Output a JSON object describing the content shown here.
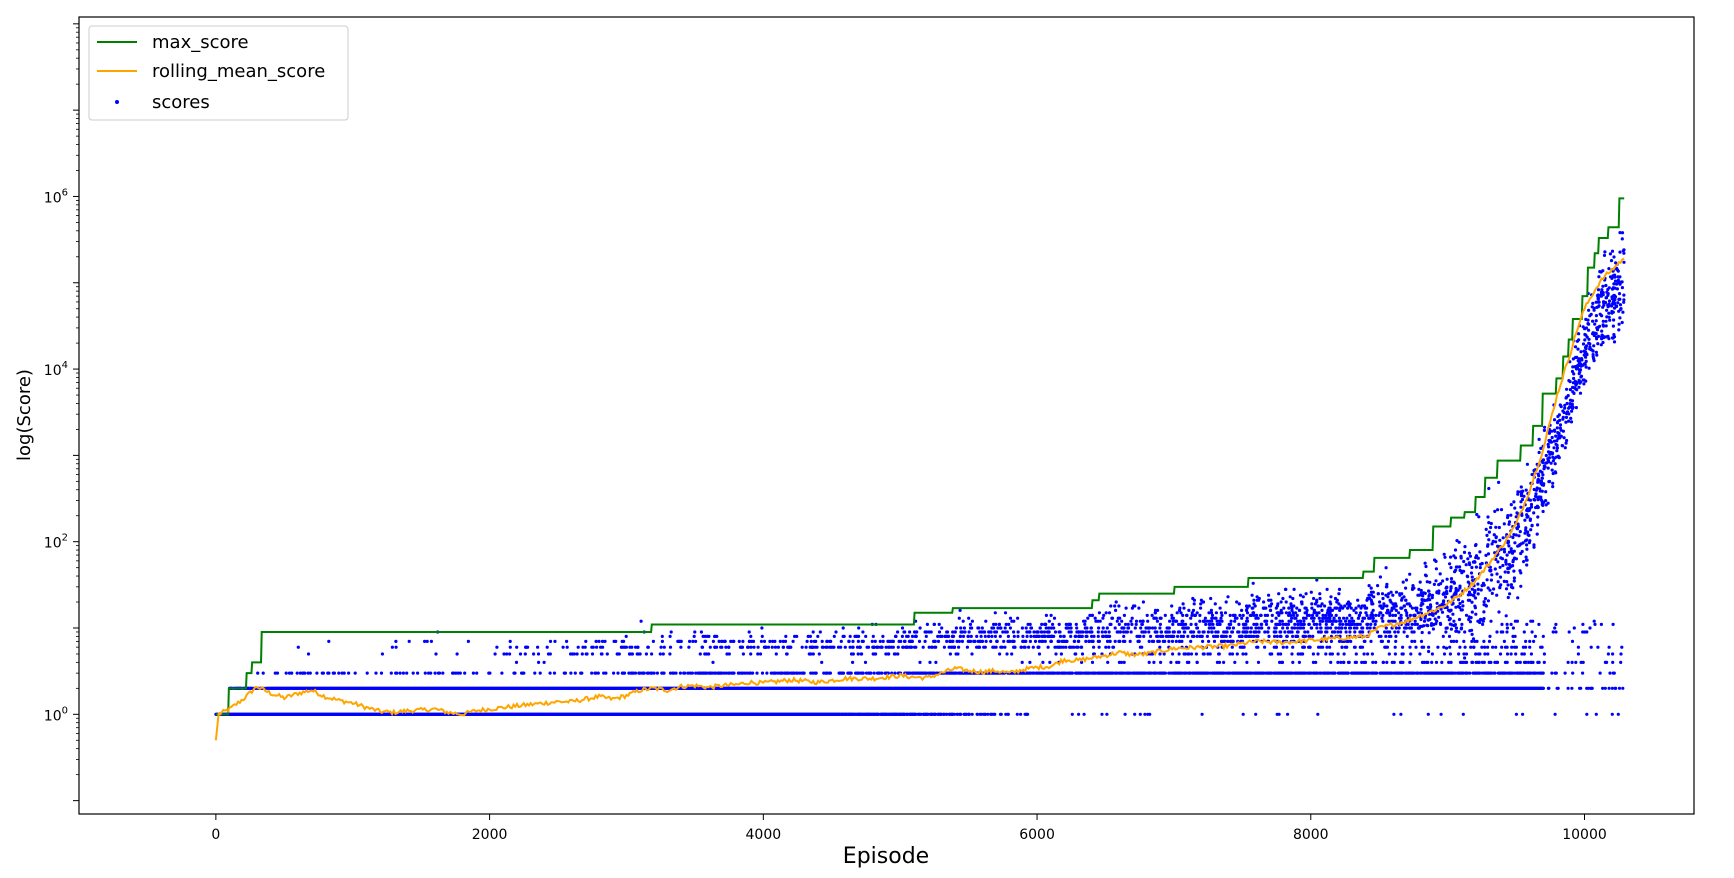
{
  "chart_data": {
    "type": "line+scatter",
    "title": "",
    "xlabel": "Episode",
    "ylabel": "log(Score)",
    "xlim": [
      -1000,
      10800
    ],
    "ylim": [
      0.07,
      120000000
    ],
    "yscale": "log",
    "xticks": [
      0,
      2000,
      4000,
      6000,
      8000,
      10000
    ],
    "yticks": [
      {
        "value": 1,
        "label": "10",
        "exp": "0"
      },
      {
        "value": 100,
        "label": "10",
        "exp": "2"
      },
      {
        "value": 10000,
        "label": "10",
        "exp": "4"
      },
      {
        "value": 1000000,
        "label": "10",
        "exp": "6"
      }
    ],
    "grid": false,
    "legend_position": "top-left",
    "series": [
      {
        "name": "max_score",
        "kind": "step",
        "color": "#008000",
        "points": [
          [
            0,
            1
          ],
          [
            90,
            1
          ],
          [
            95,
            2
          ],
          [
            220,
            2
          ],
          [
            225,
            3
          ],
          [
            260,
            3
          ],
          [
            265,
            4
          ],
          [
            330,
            4
          ],
          [
            335,
            9
          ],
          [
            3180,
            9
          ],
          [
            3185,
            11
          ],
          [
            5100,
            11
          ],
          [
            5105,
            15
          ],
          [
            5380,
            15
          ],
          [
            5385,
            17
          ],
          [
            6400,
            17
          ],
          [
            6405,
            21
          ],
          [
            6450,
            21
          ],
          [
            6455,
            25
          ],
          [
            7000,
            25
          ],
          [
            7005,
            30
          ],
          [
            7540,
            30
          ],
          [
            7545,
            38
          ],
          [
            8380,
            38
          ],
          [
            8385,
            45
          ],
          [
            8460,
            45
          ],
          [
            8465,
            65
          ],
          [
            8720,
            65
          ],
          [
            8725,
            80
          ],
          [
            8890,
            80
          ],
          [
            8895,
            150
          ],
          [
            9020,
            150
          ],
          [
            9025,
            190
          ],
          [
            9120,
            190
          ],
          [
            9125,
            220
          ],
          [
            9200,
            220
          ],
          [
            9205,
            330
          ],
          [
            9270,
            330
          ],
          [
            9275,
            550
          ],
          [
            9360,
            550
          ],
          [
            9365,
            870
          ],
          [
            9530,
            870
          ],
          [
            9535,
            1300
          ],
          [
            9620,
            1300
          ],
          [
            9625,
            2200
          ],
          [
            9690,
            2200
          ],
          [
            9695,
            5200
          ],
          [
            9790,
            5200
          ],
          [
            9795,
            7800
          ],
          [
            9840,
            7800
          ],
          [
            9845,
            14000
          ],
          [
            9880,
            14000
          ],
          [
            9885,
            22000
          ],
          [
            9910,
            22000
          ],
          [
            9915,
            38000
          ],
          [
            9980,
            38000
          ],
          [
            9985,
            70000
          ],
          [
            10020,
            70000
          ],
          [
            10025,
            150000
          ],
          [
            10070,
            150000
          ],
          [
            10075,
            220000
          ],
          [
            10100,
            220000
          ],
          [
            10105,
            330000
          ],
          [
            10170,
            330000
          ],
          [
            10175,
            440000
          ],
          [
            10250,
            440000
          ],
          [
            10255,
            950000
          ],
          [
            10290,
            950000
          ]
        ]
      },
      {
        "name": "rolling_mean_score",
        "kind": "line",
        "color": "#ffa500",
        "points": [
          [
            0,
            0.5
          ],
          [
            20,
            1.0
          ],
          [
            100,
            1.15
          ],
          [
            200,
            1.5
          ],
          [
            300,
            2.1
          ],
          [
            400,
            1.75
          ],
          [
            500,
            1.55
          ],
          [
            600,
            1.75
          ],
          [
            700,
            1.9
          ],
          [
            800,
            1.6
          ],
          [
            900,
            1.45
          ],
          [
            1000,
            1.35
          ],
          [
            1100,
            1.2
          ],
          [
            1200,
            1.08
          ],
          [
            1300,
            1.05
          ],
          [
            1400,
            1.1
          ],
          [
            1500,
            1.12
          ],
          [
            1600,
            1.15
          ],
          [
            1700,
            1.05
          ],
          [
            1800,
            1.0
          ],
          [
            1900,
            1.1
          ],
          [
            2000,
            1.15
          ],
          [
            2100,
            1.2
          ],
          [
            2200,
            1.25
          ],
          [
            2300,
            1.3
          ],
          [
            2400,
            1.35
          ],
          [
            2500,
            1.4
          ],
          [
            2600,
            1.4
          ],
          [
            2700,
            1.5
          ],
          [
            2800,
            1.6
          ],
          [
            2900,
            1.5
          ],
          [
            3000,
            1.65
          ],
          [
            3100,
            1.9
          ],
          [
            3200,
            2.0
          ],
          [
            3300,
            1.9
          ],
          [
            3400,
            2.1
          ],
          [
            3500,
            2.15
          ],
          [
            3600,
            2.05
          ],
          [
            3700,
            2.15
          ],
          [
            3800,
            2.2
          ],
          [
            3900,
            2.35
          ],
          [
            4000,
            2.3
          ],
          [
            4200,
            2.5
          ],
          [
            4400,
            2.35
          ],
          [
            4600,
            2.6
          ],
          [
            4800,
            2.6
          ],
          [
            5000,
            2.8
          ],
          [
            5100,
            2.7
          ],
          [
            5200,
            2.65
          ],
          [
            5300,
            3.0
          ],
          [
            5400,
            3.4
          ],
          [
            5500,
            3.2
          ],
          [
            5600,
            3.1
          ],
          [
            5700,
            3.2
          ],
          [
            5800,
            3.0
          ],
          [
            5900,
            3.3
          ],
          [
            6000,
            3.5
          ],
          [
            6100,
            3.6
          ],
          [
            6200,
            4.3
          ],
          [
            6300,
            4.2
          ],
          [
            6400,
            4.5
          ],
          [
            6500,
            4.8
          ],
          [
            6600,
            5.2
          ],
          [
            6700,
            4.9
          ],
          [
            6800,
            5.0
          ],
          [
            6900,
            5.4
          ],
          [
            7000,
            5.8
          ],
          [
            7200,
            6.0
          ],
          [
            7400,
            6.2
          ],
          [
            7600,
            7.0
          ],
          [
            7800,
            6.8
          ],
          [
            8000,
            7.2
          ],
          [
            8200,
            7.6
          ],
          [
            8400,
            8.0
          ],
          [
            8500,
            10
          ],
          [
            8600,
            11
          ],
          [
            8700,
            12
          ],
          [
            8800,
            14
          ],
          [
            8900,
            16
          ],
          [
            9000,
            19
          ],
          [
            9100,
            25
          ],
          [
            9200,
            35
          ],
          [
            9300,
            55
          ],
          [
            9400,
            90
          ],
          [
            9500,
            160
          ],
          [
            9550,
            250
          ],
          [
            9600,
            400
          ],
          [
            9650,
            700
          ],
          [
            9700,
            1200
          ],
          [
            9750,
            2500
          ],
          [
            9800,
            5000
          ],
          [
            9850,
            9000
          ],
          [
            9900,
            16000
          ],
          [
            9950,
            30000
          ],
          [
            10000,
            50000
          ],
          [
            10050,
            70000
          ],
          [
            10100,
            95000
          ],
          [
            10150,
            120000
          ],
          [
            10200,
            140000
          ],
          [
            10250,
            170000
          ],
          [
            10290,
            190000
          ]
        ]
      },
      {
        "name": "scores",
        "kind": "scatter",
        "color": "#0000ff",
        "bands": [
          {
            "value": 1,
            "x": [
              0,
              6000
            ],
            "step": 3,
            "sparse_x": [
              6000,
              10250
            ],
            "sparse_count": 30
          },
          {
            "value": 2,
            "x": [
              100,
              10290
            ],
            "step": 4
          },
          {
            "value": 3,
            "x": [
              250,
              10290
            ],
            "step": 8,
            "density_start": 0.25
          }
        ],
        "upper_cloud": {
          "x": [
            300,
            10290
          ],
          "count": 2600
        }
      }
    ]
  }
}
